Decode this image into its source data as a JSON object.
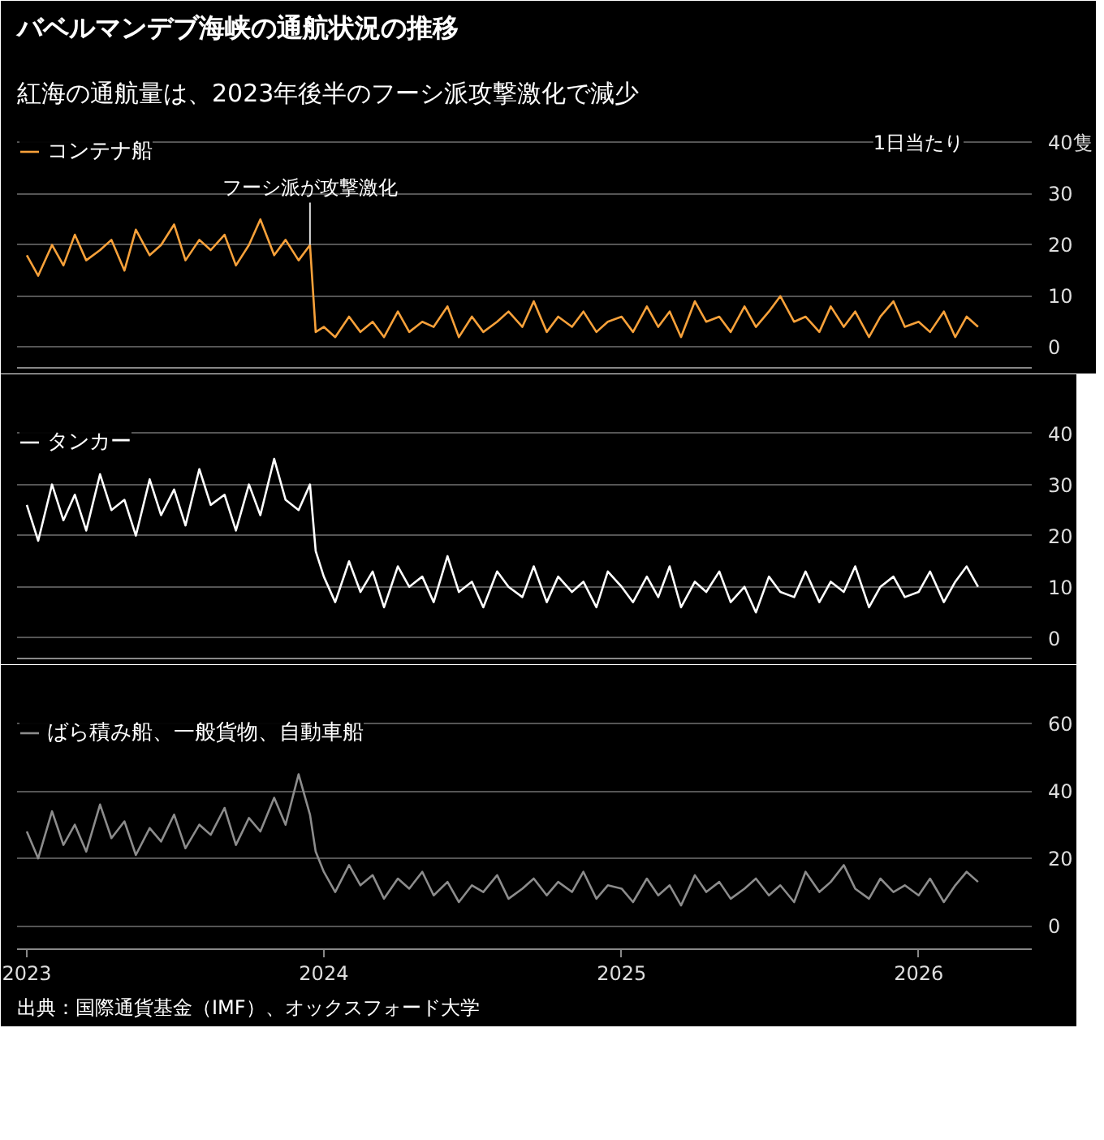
{
  "chart_data": [
    {
      "type": "line",
      "title": "バベルマンデブ海峡の通航状況の推移",
      "subtitle": "紅海の通航量は、2023年後半のフーシ派攻撃激化で減少",
      "x": [
        "2023-01-01",
        "2023-01-15",
        "2023-02-01",
        "2023-02-15",
        "2023-03-01",
        "2023-03-15",
        "2023-04-01",
        "2023-04-15",
        "2023-05-01",
        "2023-05-15",
        "2023-06-01",
        "2023-06-15",
        "2023-07-01",
        "2023-07-15",
        "2023-08-01",
        "2023-08-15",
        "2023-09-01",
        "2023-09-15",
        "2023-10-01",
        "2023-10-15",
        "2023-11-01",
        "2023-11-15",
        "2023-12-01",
        "2023-12-15",
        "2023-12-22",
        "2024-01-01",
        "2024-01-15",
        "2024-02-01",
        "2024-02-15",
        "2024-03-01",
        "2024-03-15",
        "2024-04-01",
        "2024-04-15",
        "2024-05-01",
        "2024-05-15",
        "2024-06-01",
        "2024-06-15",
        "2024-07-01",
        "2024-07-15",
        "2024-08-01",
        "2024-08-15",
        "2024-09-01",
        "2024-09-15",
        "2024-10-01",
        "2024-10-15",
        "2024-11-01",
        "2024-11-15",
        "2024-12-01",
        "2024-12-15",
        "2025-01-01",
        "2025-01-15",
        "2025-02-01",
        "2025-02-15",
        "2025-03-01",
        "2025-03-15",
        "2025-04-01",
        "2025-04-15",
        "2025-05-01",
        "2025-05-15",
        "2025-06-01",
        "2025-06-15",
        "2025-07-01",
        "2025-07-15",
        "2025-08-01",
        "2025-08-15",
        "2025-09-01",
        "2025-09-15",
        "2025-10-01",
        "2025-10-15",
        "2025-11-01",
        "2025-11-15",
        "2025-12-01",
        "2025-12-15",
        "2026-01-01",
        "2026-01-15",
        "2026-02-01",
        "2026-02-15",
        "2026-03-01",
        "2026-03-15"
      ],
      "series": [
        {
          "name": "コンテナ船",
          "color": "#f7a13a",
          "values": [
            18,
            14,
            20,
            16,
            22,
            17,
            19,
            21,
            15,
            23,
            18,
            20,
            24,
            17,
            21,
            19,
            22,
            16,
            20,
            25,
            18,
            21,
            17,
            20,
            3,
            4,
            2,
            6,
            3,
            5,
            2,
            7,
            3,
            5,
            4,
            8,
            2,
            6,
            3,
            5,
            7,
            4,
            9,
            3,
            6,
            4,
            7,
            3,
            5,
            6,
            3,
            8,
            4,
            7,
            2,
            9,
            5,
            6,
            3,
            8,
            4,
            7,
            10,
            5,
            6,
            3,
            8,
            4,
            7,
            2,
            6,
            9,
            4,
            5,
            3,
            7,
            2,
            6,
            4
          ]
        }
      ],
      "xlim": [
        "2022-12-20",
        "2026-05-20"
      ],
      "ylim": [
        -4,
        42
      ],
      "yticks": [
        0,
        10,
        20,
        30,
        {
          "value": 40,
          "label": "40隻"
        }
      ],
      "grid": "y",
      "legend": "top left",
      "tick_labels": "y",
      "line_style": "solid",
      "annotations": [
        "1日当たり",
        {
          "text": "フーシ派が攻撃激化",
          "x": "2023-12-15",
          "y": 20
        }
      ]
    },
    {
      "type": "line",
      "x": [
        "2023-01-01",
        "2023-01-15",
        "2023-02-01",
        "2023-02-15",
        "2023-03-01",
        "2023-03-15",
        "2023-04-01",
        "2023-04-15",
        "2023-05-01",
        "2023-05-15",
        "2023-06-01",
        "2023-06-15",
        "2023-07-01",
        "2023-07-15",
        "2023-08-01",
        "2023-08-15",
        "2023-09-01",
        "2023-09-15",
        "2023-10-01",
        "2023-10-15",
        "2023-11-01",
        "2023-11-15",
        "2023-12-01",
        "2023-12-15",
        "2023-12-22",
        "2024-01-01",
        "2024-01-15",
        "2024-02-01",
        "2024-02-15",
        "2024-03-01",
        "2024-03-15",
        "2024-04-01",
        "2024-04-15",
        "2024-05-01",
        "2024-05-15",
        "2024-06-01",
        "2024-06-15",
        "2024-07-01",
        "2024-07-15",
        "2024-08-01",
        "2024-08-15",
        "2024-09-01",
        "2024-09-15",
        "2024-10-01",
        "2024-10-15",
        "2024-11-01",
        "2024-11-15",
        "2024-12-01",
        "2024-12-15",
        "2025-01-01",
        "2025-01-15",
        "2025-02-01",
        "2025-02-15",
        "2025-03-01",
        "2025-03-15",
        "2025-04-01",
        "2025-04-15",
        "2025-05-01",
        "2025-05-15",
        "2025-06-01",
        "2025-06-15",
        "2025-07-01",
        "2025-07-15",
        "2025-08-01",
        "2025-08-15",
        "2025-09-01",
        "2025-09-15",
        "2025-10-01",
        "2025-10-15",
        "2025-11-01",
        "2025-11-15",
        "2025-12-01",
        "2025-12-15",
        "2026-01-01",
        "2026-01-15",
        "2026-02-01",
        "2026-02-15",
        "2026-03-01",
        "2026-03-15"
      ],
      "series": [
        {
          "name": "タンカー",
          "color": "#ffffff",
          "values": [
            26,
            19,
            30,
            23,
            28,
            21,
            32,
            25,
            27,
            20,
            31,
            24,
            29,
            22,
            33,
            26,
            28,
            21,
            30,
            24,
            35,
            27,
            25,
            30,
            17,
            12,
            7,
            15,
            9,
            13,
            6,
            14,
            10,
            12,
            7,
            16,
            9,
            11,
            6,
            13,
            10,
            8,
            14,
            7,
            12,
            9,
            11,
            6,
            13,
            10,
            7,
            12,
            8,
            14,
            6,
            11,
            9,
            13,
            7,
            10,
            5,
            12,
            9,
            8,
            13,
            7,
            11,
            9,
            14,
            6,
            10,
            12,
            8,
            9,
            13,
            7,
            11,
            14,
            10
          ]
        }
      ],
      "xlim": [
        "2022-12-20",
        "2026-05-20"
      ],
      "ylim": [
        -4,
        42
      ],
      "yticks": [
        0,
        10,
        20,
        30,
        40
      ],
      "grid": "y",
      "legend": "top left",
      "tick_labels": "y",
      "line_style": "solid"
    },
    {
      "type": "line",
      "x": [
        "2023-01-01",
        "2023-01-15",
        "2023-02-01",
        "2023-02-15",
        "2023-03-01",
        "2023-03-15",
        "2023-04-01",
        "2023-04-15",
        "2023-05-01",
        "2023-05-15",
        "2023-06-01",
        "2023-06-15",
        "2023-07-01",
        "2023-07-15",
        "2023-08-01",
        "2023-08-15",
        "2023-09-01",
        "2023-09-15",
        "2023-10-01",
        "2023-10-15",
        "2023-11-01",
        "2023-11-15",
        "2023-12-01",
        "2023-12-15",
        "2023-12-22",
        "2024-01-01",
        "2024-01-15",
        "2024-02-01",
        "2024-02-15",
        "2024-03-01",
        "2024-03-15",
        "2024-04-01",
        "2024-04-15",
        "2024-05-01",
        "2024-05-15",
        "2024-06-01",
        "2024-06-15",
        "2024-07-01",
        "2024-07-15",
        "2024-08-01",
        "2024-08-15",
        "2024-09-01",
        "2024-09-15",
        "2024-10-01",
        "2024-10-15",
        "2024-11-01",
        "2024-11-15",
        "2024-12-01",
        "2024-12-15",
        "2025-01-01",
        "2025-01-15",
        "2025-02-01",
        "2025-02-15",
        "2025-03-01",
        "2025-03-15",
        "2025-04-01",
        "2025-04-15",
        "2025-05-01",
        "2025-05-15",
        "2025-06-01",
        "2025-06-15",
        "2025-07-01",
        "2025-07-15",
        "2025-08-01",
        "2025-08-15",
        "2025-09-01",
        "2025-09-15",
        "2025-10-01",
        "2025-10-15",
        "2025-11-01",
        "2025-11-15",
        "2025-12-01",
        "2025-12-15",
        "2026-01-01",
        "2026-01-15",
        "2026-02-01",
        "2026-02-15",
        "2026-03-01",
        "2026-03-15"
      ],
      "series": [
        {
          "name": "ばら積み船、一般貨物、自動車船",
          "color": "#8c8c8c",
          "values": [
            28,
            20,
            34,
            24,
            30,
            22,
            36,
            26,
            31,
            21,
            29,
            25,
            33,
            23,
            30,
            27,
            35,
            24,
            32,
            28,
            38,
            30,
            45,
            33,
            22,
            16,
            10,
            18,
            12,
            15,
            8,
            14,
            11,
            16,
            9,
            13,
            7,
            12,
            10,
            15,
            8,
            11,
            14,
            9,
            13,
            10,
            16,
            8,
            12,
            11,
            7,
            14,
            9,
            12,
            6,
            15,
            10,
            13,
            8,
            11,
            14,
            9,
            12,
            7,
            16,
            10,
            13,
            18,
            11,
            8,
            14,
            10,
            12,
            9,
            14,
            7,
            12,
            16,
            13
          ]
        }
      ],
      "xlim": [
        "2022-12-20",
        "2026-05-20"
      ],
      "xticks": [
        {
          "value": "2023-01-01",
          "label": "2023"
        },
        {
          "value": "2024-01-01",
          "label": "2024"
        },
        {
          "value": "2025-01-01",
          "label": "2025"
        },
        {
          "value": "2026-01-01",
          "label": "2026"
        }
      ],
      "ylim": [
        -7,
        63
      ],
      "yticks": [
        0,
        20,
        40,
        60
      ],
      "grid": "y",
      "legend": "top left",
      "line_style": "solid",
      "annotations": [
        "出典：国際通貨基金（IMF）、オックスフォード大学"
      ]
    }
  ]
}
